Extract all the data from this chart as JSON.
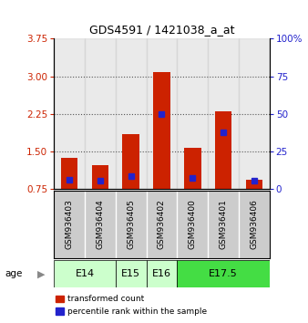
{
  "title": "GDS4591 / 1421038_a_at",
  "samples": [
    "GSM936403",
    "GSM936404",
    "GSM936405",
    "GSM936402",
    "GSM936400",
    "GSM936401",
    "GSM936406"
  ],
  "transformed_counts": [
    1.38,
    1.22,
    1.85,
    3.08,
    1.58,
    2.3,
    0.93
  ],
  "percentile_ranks": [
    6.0,
    5.3,
    8.3,
    50.0,
    7.3,
    37.5,
    5.3
  ],
  "age_groups": [
    {
      "label": "E14",
      "start": 0,
      "end": 1,
      "color": "#ccffcc"
    },
    {
      "label": "E15",
      "start": 2,
      "end": 2,
      "color": "#ccffcc"
    },
    {
      "label": "E16",
      "start": 3,
      "end": 3,
      "color": "#ccffcc"
    },
    {
      "label": "E17.5",
      "start": 4,
      "end": 6,
      "color": "#44dd44"
    }
  ],
  "ylim_left": [
    0.75,
    3.75
  ],
  "ylim_right": [
    0,
    100
  ],
  "yticks_left": [
    0.75,
    1.5,
    2.25,
    3.0,
    3.75
  ],
  "yticks_right": [
    0,
    25,
    50,
    75,
    100
  ],
  "grid_yticks": [
    1.5,
    2.25,
    3.0
  ],
  "bar_color": "#cc2200",
  "percentile_color": "#2222cc",
  "bar_width": 0.55,
  "grid_color": "#555555",
  "sample_bg": "#cccccc",
  "legend_items": [
    {
      "label": "transformed count",
      "color": "#cc2200"
    },
    {
      "label": "percentile rank within the sample",
      "color": "#2222cc"
    }
  ]
}
